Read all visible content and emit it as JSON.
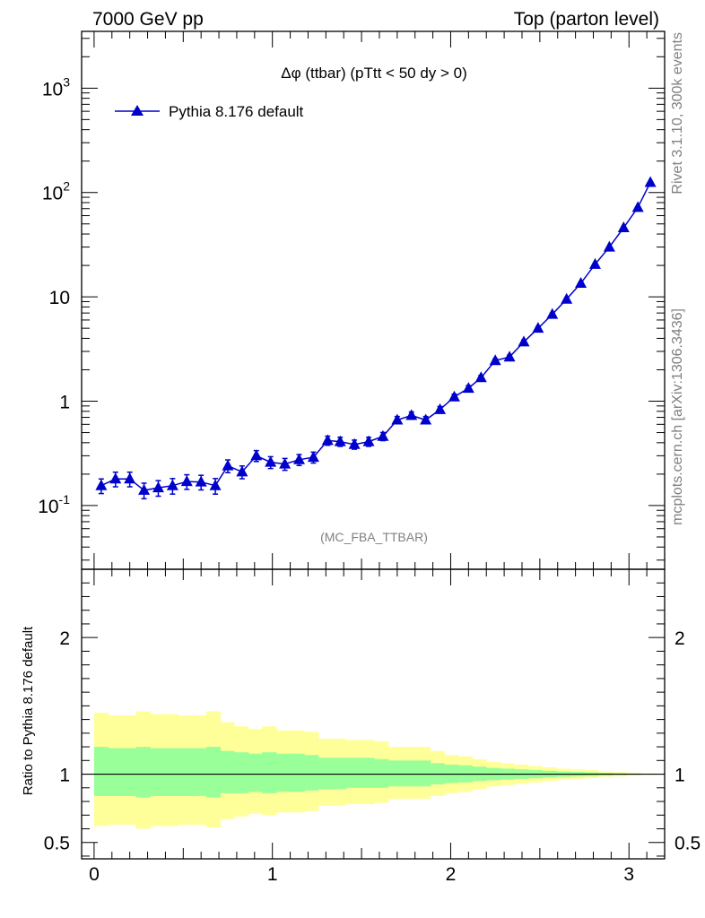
{
  "header": {
    "left": "7000 GeV pp",
    "right": "Top (parton level)"
  },
  "side_labels": {
    "rivet": "Rivet 3.1.10,  300k events",
    "mcplots": "mcplots.cern.ch [arXiv:1306.3436]"
  },
  "analysis_tag": "(MC_FBA_TTBAR)",
  "colors": {
    "series": "#0000cc",
    "band_outer": "#ffff99",
    "band_inner": "#99ff99",
    "axis": "#000000"
  },
  "chart_data": [
    {
      "type": "line",
      "title": "Δφ (ttbar) (pTtt < 50 dy > 0)",
      "xlabel": "",
      "ylabel": "",
      "log_y": true,
      "xlim": [
        -0.07,
        3.2
      ],
      "ylim": [
        0.0245,
        3500
      ],
      "x_ticks": [
        "0",
        "1",
        "2",
        "3"
      ],
      "y_ticks": [
        "10^-1",
        "1",
        "10",
        "10^2",
        "10^3"
      ],
      "legend": "top-left",
      "series": [
        {
          "name": "Pythia 8.176 default",
          "marker": "triangle-up",
          "x": [
            0.04,
            0.12,
            0.2,
            0.28,
            0.36,
            0.44,
            0.52,
            0.6,
            0.68,
            0.75,
            0.83,
            0.91,
            0.99,
            1.07,
            1.15,
            1.23,
            1.31,
            1.38,
            1.46,
            1.54,
            1.62,
            1.7,
            1.78,
            1.86,
            1.94,
            2.02,
            2.1,
            2.17,
            2.25,
            2.33,
            2.41,
            2.49,
            2.57,
            2.65,
            2.73,
            2.81,
            2.89,
            2.97,
            3.05,
            3.12
          ],
          "y": [
            0.155,
            0.18,
            0.18,
            0.14,
            0.148,
            0.155,
            0.17,
            0.168,
            0.155,
            0.24,
            0.21,
            0.3,
            0.26,
            0.25,
            0.275,
            0.29,
            0.42,
            0.41,
            0.385,
            0.41,
            0.46,
            0.66,
            0.73,
            0.66,
            0.83,
            1.1,
            1.33,
            1.68,
            2.45,
            2.65,
            3.7,
            5.0,
            6.8,
            9.5,
            13.5,
            20.5,
            30.0,
            46.0,
            72.0,
            125.0
          ],
          "err_rel": [
            0.16,
            0.16,
            0.16,
            0.17,
            0.17,
            0.17,
            0.16,
            0.16,
            0.17,
            0.14,
            0.14,
            0.12,
            0.13,
            0.13,
            0.12,
            0.12,
            0.1,
            0.1,
            0.1,
            0.1,
            0.09,
            0.08,
            0.08,
            0.08,
            0.07,
            0.06,
            0.06,
            0.05,
            0.04,
            0.04,
            0.04,
            0.03,
            0.03,
            0.02,
            0.02,
            0.02,
            0.01,
            0.01,
            0.01,
            0.01
          ]
        }
      ]
    },
    {
      "type": "area",
      "title": "",
      "xlabel": "",
      "ylabel": "Ratio to Pythia 8.176 default",
      "xlim": [
        -0.07,
        3.2
      ],
      "ylim": [
        0.38,
        2.5
      ],
      "x_ticks": [
        "0",
        "1",
        "2",
        "3"
      ],
      "y_ticks": [
        "0.5",
        "1",
        "2"
      ],
      "reference_line": 1,
      "bins": {
        "edges": [
          0.0,
          0.079,
          0.157,
          0.236,
          0.314,
          0.393,
          0.471,
          0.55,
          0.628,
          0.707,
          0.785,
          0.864,
          0.942,
          1.021,
          1.1,
          1.178,
          1.257,
          1.335,
          1.414,
          1.492,
          1.571,
          1.649,
          1.728,
          1.806,
          1.885,
          1.963,
          2.042,
          2.12,
          2.199,
          2.278,
          2.356,
          2.435,
          2.513,
          2.592,
          2.67,
          2.749,
          2.827,
          2.906,
          2.985,
          3.063,
          3.142
        ],
        "outer_hi": [
          1.45,
          1.43,
          1.43,
          1.46,
          1.44,
          1.44,
          1.43,
          1.43,
          1.46,
          1.38,
          1.35,
          1.33,
          1.35,
          1.32,
          1.32,
          1.31,
          1.26,
          1.26,
          1.25,
          1.25,
          1.24,
          1.2,
          1.2,
          1.2,
          1.17,
          1.14,
          1.13,
          1.11,
          1.09,
          1.08,
          1.07,
          1.06,
          1.05,
          1.04,
          1.035,
          1.03,
          1.02,
          1.015,
          1.01,
          1.005
        ],
        "outer_lo": [
          0.62,
          0.63,
          0.63,
          0.6,
          0.62,
          0.62,
          0.63,
          0.63,
          0.61,
          0.67,
          0.69,
          0.71,
          0.7,
          0.72,
          0.72,
          0.73,
          0.77,
          0.77,
          0.78,
          0.78,
          0.79,
          0.82,
          0.82,
          0.82,
          0.84,
          0.86,
          0.87,
          0.89,
          0.91,
          0.92,
          0.93,
          0.94,
          0.95,
          0.96,
          0.965,
          0.97,
          0.98,
          0.985,
          0.99,
          0.995
        ],
        "inner_hi": [
          1.2,
          1.19,
          1.19,
          1.2,
          1.19,
          1.19,
          1.19,
          1.19,
          1.2,
          1.17,
          1.16,
          1.15,
          1.16,
          1.15,
          1.15,
          1.14,
          1.12,
          1.12,
          1.12,
          1.12,
          1.11,
          1.1,
          1.1,
          1.1,
          1.08,
          1.07,
          1.065,
          1.055,
          1.045,
          1.04,
          1.035,
          1.03,
          1.025,
          1.02,
          1.017,
          1.014,
          1.01,
          1.007,
          1.005,
          1.003
        ],
        "inner_lo": [
          0.84,
          0.84,
          0.84,
          0.83,
          0.84,
          0.84,
          0.84,
          0.84,
          0.83,
          0.86,
          0.86,
          0.87,
          0.86,
          0.87,
          0.87,
          0.88,
          0.89,
          0.89,
          0.9,
          0.9,
          0.9,
          0.91,
          0.91,
          0.91,
          0.925,
          0.935,
          0.94,
          0.95,
          0.955,
          0.96,
          0.965,
          0.97,
          0.975,
          0.98,
          0.983,
          0.986,
          0.99,
          0.993,
          0.995,
          0.997
        ]
      }
    }
  ]
}
